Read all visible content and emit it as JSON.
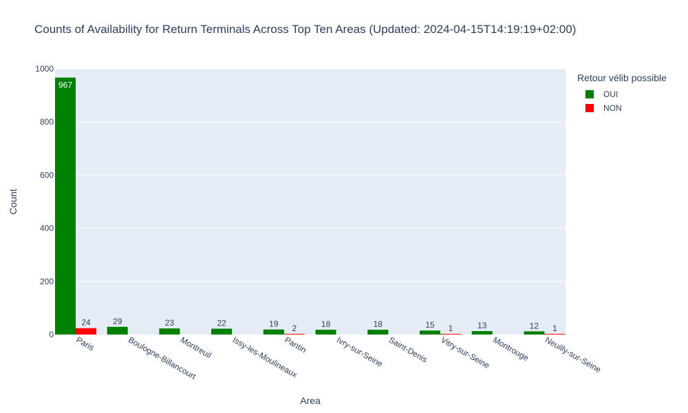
{
  "chart_data": {
    "type": "bar",
    "title": "Counts of Availability for Return Terminals Across Top Ten Areas (Updated: 2024-04-15T14:19:19+02:00)",
    "xlabel": "Area",
    "ylabel": "Count",
    "ylim": [
      0,
      1000
    ],
    "yticks": [
      0,
      200,
      400,
      600,
      800,
      1000
    ],
    "grid": true,
    "legend_placement": "top-right",
    "legend_title": "Retour vélib possible",
    "categories": [
      "Paris",
      "Boulogne-Billancourt",
      "Montreuil",
      "Issy-les-Moulineaux",
      "Pantin",
      "Ivry-sur-Seine",
      "Saint-Denis",
      "Vitry-sur-Seine",
      "Montrouge",
      "Neuilly-sur-Seine"
    ],
    "series": [
      {
        "name": "OUI",
        "color": "#008000",
        "values": [
          967,
          29,
          23,
          22,
          19,
          18,
          18,
          15,
          13,
          12
        ]
      },
      {
        "name": "NON",
        "color": "#ff0000",
        "values": [
          24,
          null,
          null,
          null,
          2,
          null,
          null,
          1,
          null,
          1
        ]
      }
    ]
  }
}
